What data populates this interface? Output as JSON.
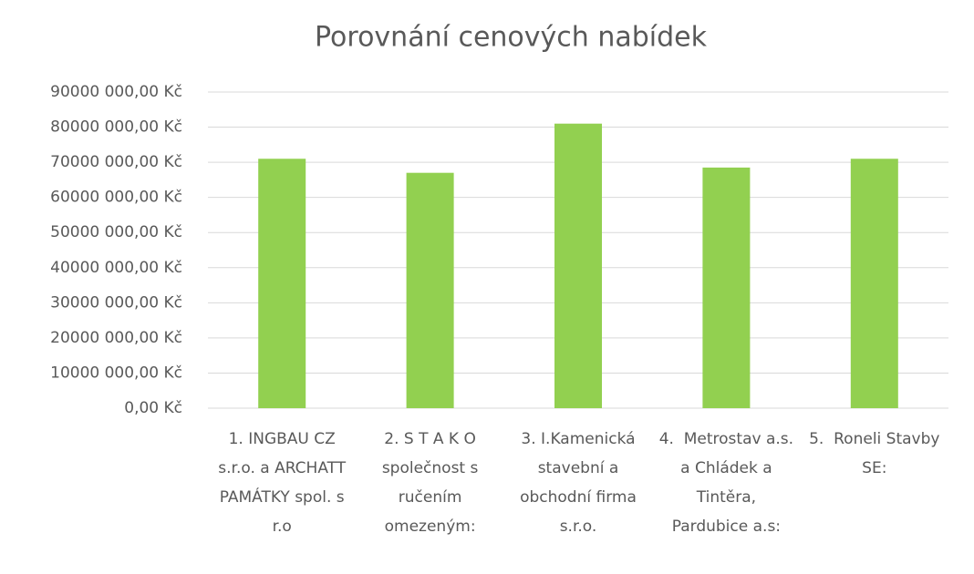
{
  "chart_data": {
    "type": "bar",
    "title": "Porovnání cenových nabídek",
    "categories": [
      "1. INGBAU CZ s.r.o. a ARCHATT PAMÁTKY spol. s r.o",
      "2. S T A K O společnost s ručením omezeným:",
      "3. I.Kamenická stavební a obchodní firma s.r.o.",
      "4.  Metrostav a.s. a Chládek a Tintěra, Pardubice a.s:",
      "5.  Roneli Stavby SE:"
    ],
    "values": [
      71000000,
      67000000,
      81000000,
      68500000,
      71000000
    ],
    "color": "#92d050",
    "ylim": [
      0,
      90000000
    ],
    "yticks": [
      {
        "value": 0,
        "label": "0,00 Kč"
      },
      {
        "value": 10000000,
        "label": "10000 000,00 Kč"
      },
      {
        "value": 20000000,
        "label": "20000 000,00 Kč"
      },
      {
        "value": 30000000,
        "label": "30000 000,00 Kč"
      },
      {
        "value": 40000000,
        "label": "40000 000,00 Kč"
      },
      {
        "value": 50000000,
        "label": "50000 000,00 Kč"
      },
      {
        "value": 60000000,
        "label": "60000 000,00 Kč"
      },
      {
        "value": 70000000,
        "label": "70000 000,00 Kč"
      },
      {
        "value": 80000000,
        "label": "80000 000,00 Kč"
      },
      {
        "value": 90000000,
        "label": "90000 000,00 Kč"
      }
    ],
    "grid": true
  }
}
